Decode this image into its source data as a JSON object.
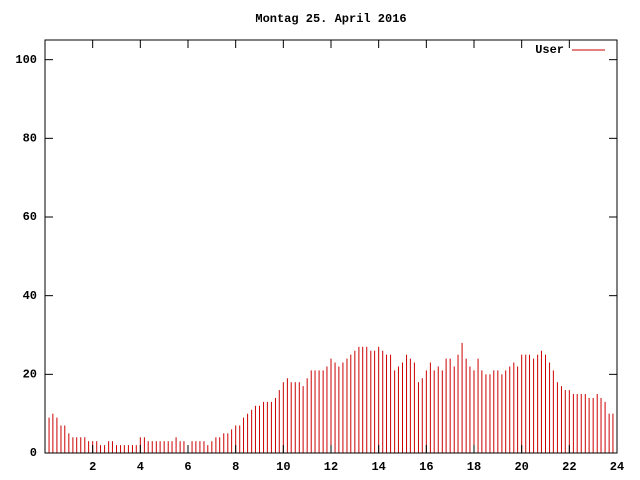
{
  "chart_data": {
    "type": "impulses",
    "title": "Montag 25. April 2016",
    "x": [
      0,
      0.17,
      0.33,
      0.5,
      0.67,
      0.83,
      1,
      1.17,
      1.33,
      1.5,
      1.67,
      1.83,
      2,
      2.17,
      2.33,
      2.5,
      2.67,
      2.83,
      3,
      3.17,
      3.33,
      3.5,
      3.67,
      3.83,
      4,
      4.17,
      4.33,
      4.5,
      4.67,
      4.83,
      5,
      5.17,
      5.33,
      5.5,
      5.67,
      5.83,
      6,
      6.17,
      6.33,
      6.5,
      6.67,
      6.83,
      7,
      7.17,
      7.33,
      7.5,
      7.67,
      7.83,
      8,
      8.17,
      8.33,
      8.5,
      8.67,
      8.83,
      9,
      9.17,
      9.33,
      9.5,
      9.67,
      9.83,
      10,
      10.17,
      10.33,
      10.5,
      10.67,
      10.83,
      11,
      11.17,
      11.33,
      11.5,
      11.67,
      11.83,
      12,
      12.17,
      12.33,
      12.5,
      12.67,
      12.83,
      13,
      13.17,
      13.33,
      13.5,
      13.67,
      13.83,
      14,
      14.17,
      14.33,
      14.5,
      14.67,
      14.83,
      15,
      15.17,
      15.33,
      15.5,
      15.67,
      15.83,
      16,
      16.17,
      16.33,
      16.5,
      16.67,
      16.83,
      17,
      17.17,
      17.33,
      17.5,
      17.67,
      17.83,
      18,
      18.17,
      18.33,
      18.5,
      18.67,
      18.83,
      19,
      19.17,
      19.33,
      19.5,
      19.67,
      19.83,
      20,
      20.17,
      20.33,
      20.5,
      20.67,
      20.83,
      21,
      21.17,
      21.33,
      21.5,
      21.67,
      21.83,
      22,
      22.17,
      22.33,
      22.5,
      22.67,
      22.83,
      23,
      23.17,
      23.33,
      23.5,
      23.67,
      23.83
    ],
    "series": [
      {
        "name": "User",
        "color": "#cc0000",
        "values": [
          10,
          9,
          10,
          9,
          7,
          7,
          5,
          4,
          4,
          4,
          4,
          3,
          3,
          3,
          2,
          2,
          3,
          3,
          2,
          2,
          2,
          2,
          2,
          2,
          4,
          4,
          3,
          3,
          3,
          3,
          3,
          3,
          3,
          4,
          3,
          3,
          2,
          3,
          3,
          3,
          3,
          2,
          3,
          4,
          4,
          5,
          5,
          6,
          7,
          7,
          9,
          10,
          11,
          12,
          12,
          13,
          13,
          13,
          14,
          16,
          18,
          19,
          18,
          18,
          18,
          17,
          19,
          21,
          21,
          21,
          21,
          22,
          24,
          23,
          22,
          23,
          24,
          25,
          26,
          27,
          27,
          27,
          26,
          26,
          27,
          26,
          25,
          25,
          21,
          22,
          23,
          25,
          24,
          23,
          18,
          19,
          21,
          23,
          21,
          22,
          21,
          24,
          24,
          22,
          25,
          28,
          24,
          22,
          21,
          24,
          21,
          20,
          20,
          21,
          21,
          20,
          21,
          22,
          23,
          22,
          25,
          25,
          25,
          24,
          25,
          26,
          25,
          23,
          21,
          18,
          17,
          16,
          16,
          15,
          15,
          15,
          15,
          14,
          14,
          15,
          14,
          13,
          10,
          10
        ]
      }
    ],
    "xlim": [
      0,
      24
    ],
    "xticks": [
      2,
      4,
      6,
      8,
      10,
      12,
      14,
      16,
      18,
      20,
      22,
      24
    ],
    "ylim": [
      0,
      105
    ],
    "yticks": [
      0,
      20,
      40,
      60,
      80,
      100
    ],
    "legend": "upper right"
  }
}
